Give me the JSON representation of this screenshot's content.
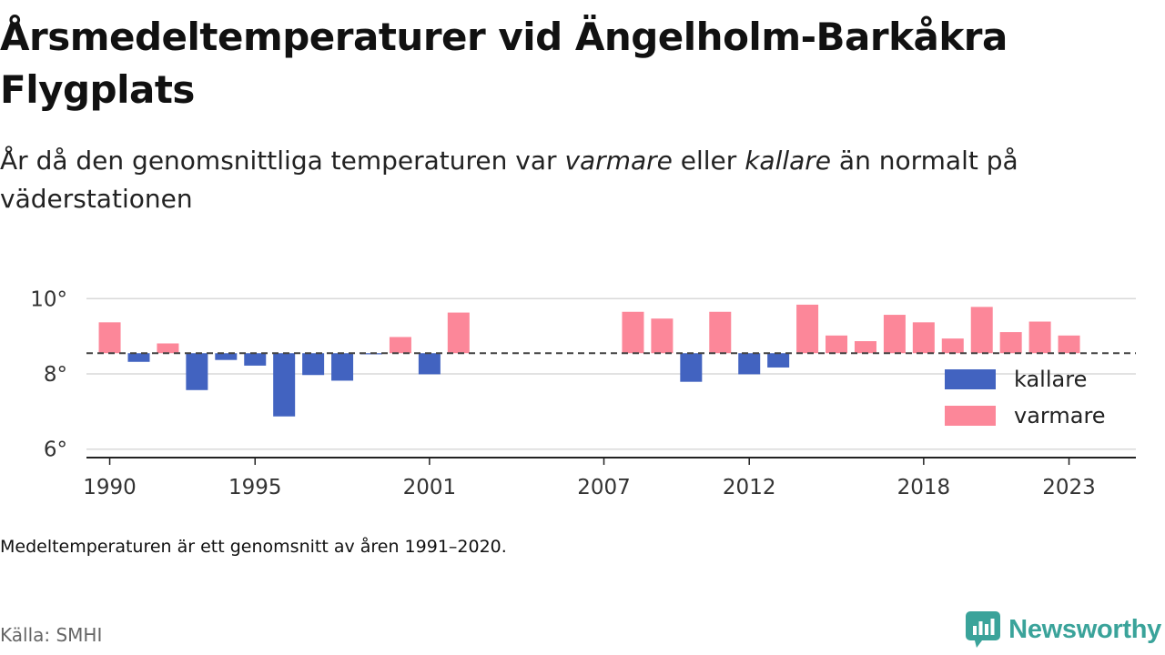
{
  "title": "Årsmedeltemperaturer vid Ängelholm-Barkåkra Flygplats",
  "subtitle": {
    "part1": "År då den genomsnittliga temperaturen var ",
    "em1": "varmare",
    "part2": " eller ",
    "em2": "kallare",
    "part3": " än normalt på väderstationen"
  },
  "note": "Medeltemperaturen är ett genomsnitt av åren 1991–2020.",
  "source": "Källa: SMHI",
  "brand": {
    "name": "Newsworthy",
    "icon": "newsworthy-logo-icon",
    "color": "#3aa39a"
  },
  "chart_data": {
    "type": "bar",
    "baseline": 8.55,
    "ylim": [
      5.8,
      10.2
    ],
    "yticks": [
      6,
      8,
      10
    ],
    "ytick_labels": [
      "6°",
      "8°",
      "10°"
    ],
    "xlim": [
      1989.2,
      2025.3
    ],
    "xticks": [
      1990,
      1995,
      2001,
      2007,
      2012,
      2018,
      2023
    ],
    "xtick_labels": [
      "1990",
      "1995",
      "2001",
      "2007",
      "2012",
      "2018",
      "2023"
    ],
    "grid": "horizontal",
    "baseline_style": "dashed",
    "colors": {
      "kallare": "#4263c0",
      "varmare": "#fc8799"
    },
    "legend": {
      "position": "right",
      "items": [
        {
          "key": "kallare",
          "label": "kallare"
        },
        {
          "key": "varmare",
          "label": "varmare"
        }
      ]
    },
    "data": [
      {
        "year": 1990,
        "value": 9.37
      },
      {
        "year": 1991,
        "value": 8.32
      },
      {
        "year": 1992,
        "value": 8.81
      },
      {
        "year": 1993,
        "value": 7.57
      },
      {
        "year": 1994,
        "value": 8.37
      },
      {
        "year": 1995,
        "value": 8.22
      },
      {
        "year": 1996,
        "value": 6.87
      },
      {
        "year": 1997,
        "value": 7.97
      },
      {
        "year": 1998,
        "value": 7.82
      },
      {
        "year": 1999,
        "value": 8.52
      },
      {
        "year": 2000,
        "value": 8.98
      },
      {
        "year": 2001,
        "value": 7.99
      },
      {
        "year": 2002,
        "value": 9.63
      },
      {
        "year": 2008,
        "value": 9.65
      },
      {
        "year": 2009,
        "value": 9.47
      },
      {
        "year": 2010,
        "value": 7.79
      },
      {
        "year": 2011,
        "value": 9.65
      },
      {
        "year": 2012,
        "value": 7.99
      },
      {
        "year": 2013,
        "value": 8.17
      },
      {
        "year": 2014,
        "value": 9.84
      },
      {
        "year": 2015,
        "value": 9.02
      },
      {
        "year": 2016,
        "value": 8.87
      },
      {
        "year": 2017,
        "value": 9.57
      },
      {
        "year": 2018,
        "value": 9.37
      },
      {
        "year": 2019,
        "value": 8.94
      },
      {
        "year": 2020,
        "value": 9.78
      },
      {
        "year": 2021,
        "value": 9.11
      },
      {
        "year": 2022,
        "value": 9.39
      },
      {
        "year": 2023,
        "value": 9.02
      }
    ]
  }
}
